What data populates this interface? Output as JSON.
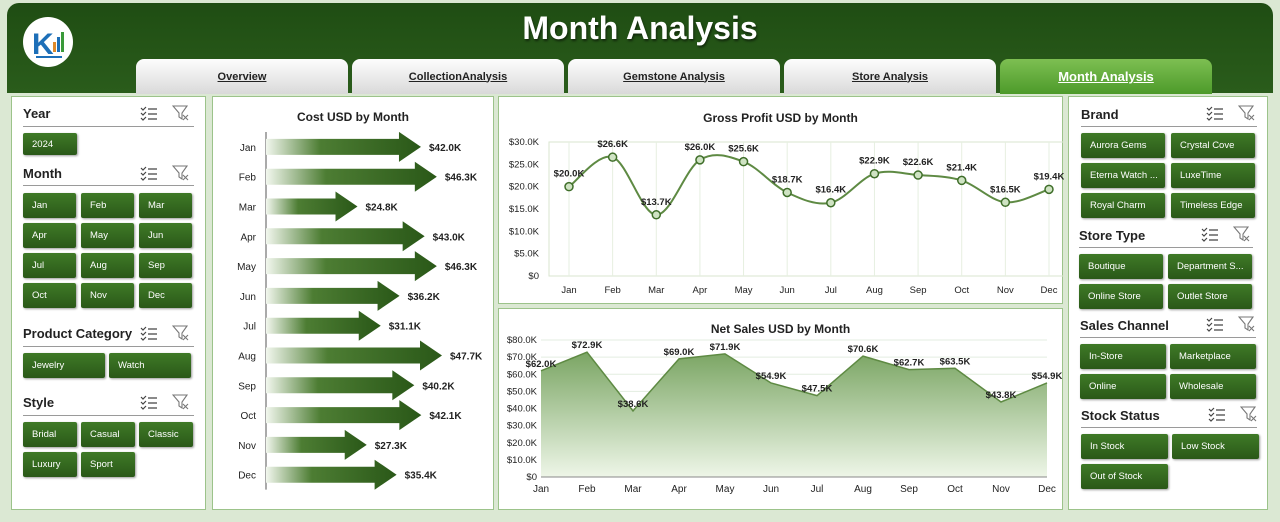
{
  "header": {
    "title": "Month Analysis"
  },
  "tabs": [
    {
      "label": "Overview",
      "active": false
    },
    {
      "label": "CollectionAnalysis",
      "active": false
    },
    {
      "label": "Gemstone Analysis",
      "active": false
    },
    {
      "label": "Store Analysis",
      "active": false
    },
    {
      "label": "Month Analysis",
      "active": true
    }
  ],
  "left_filters": {
    "year": {
      "title": "Year",
      "options": [
        "2024"
      ]
    },
    "month": {
      "title": "Month",
      "options": [
        "Jan",
        "Feb",
        "Mar",
        "Apr",
        "May",
        "Jun",
        "Jul",
        "Aug",
        "Sep",
        "Oct",
        "Nov",
        "Dec"
      ]
    },
    "product_category": {
      "title": "Product Category",
      "options": [
        "Jewelry",
        "Watch"
      ]
    },
    "style": {
      "title": "Style",
      "options": [
        "Bridal",
        "Casual",
        "Classic",
        "Luxury",
        "Sport"
      ]
    }
  },
  "right_filters": {
    "brand": {
      "title": "Brand",
      "options": [
        "Aurora Gems",
        "Crystal Cove",
        "Eterna Watch ...",
        "LuxeTime",
        "Royal Charm",
        "Timeless Edge"
      ]
    },
    "store_type": {
      "title": "Store Type",
      "options": [
        "Boutique",
        "Department S...",
        "Online Store",
        "Outlet Store"
      ]
    },
    "sales_channel": {
      "title": "Sales Channel",
      "options": [
        "In-Store",
        "Marketplace",
        "Online",
        "Wholesale"
      ]
    },
    "stock_status": {
      "title": "Stock Status",
      "options": [
        "In Stock",
        "Low Stock",
        "Out of Stock"
      ]
    }
  },
  "colors": {
    "dark_green": "#2a5818",
    "accent": "#4d9a2a",
    "line": "#6b8f4e"
  },
  "chart_data": [
    {
      "type": "bar",
      "title": "Cost USD by Month",
      "categories": [
        "Jan",
        "Feb",
        "Mar",
        "Apr",
        "May",
        "Jun",
        "Jul",
        "Aug",
        "Sep",
        "Oct",
        "Nov",
        "Dec"
      ],
      "values": [
        42.0,
        46.3,
        24.8,
        43.0,
        46.3,
        36.2,
        31.1,
        47.7,
        40.2,
        42.1,
        27.3,
        35.4
      ],
      "labels": [
        "$42.0K",
        "$46.3K",
        "$24.8K",
        "$43.0K",
        "$46.3K",
        "$36.2K",
        "$31.1K",
        "$47.7K",
        "$40.2K",
        "$42.1K",
        "$27.3K",
        "$35.4K"
      ],
      "orientation": "horizontal"
    },
    {
      "type": "line",
      "title": "Gross Profit USD by Month",
      "categories": [
        "Jan",
        "Feb",
        "Mar",
        "Apr",
        "May",
        "Jun",
        "Jul",
        "Aug",
        "Sep",
        "Oct",
        "Nov",
        "Dec"
      ],
      "values": [
        20.0,
        26.6,
        13.7,
        26.0,
        25.6,
        18.7,
        16.4,
        22.9,
        22.6,
        21.4,
        16.5,
        19.4
      ],
      "labels": [
        "$20.0K",
        "$26.6K",
        "$13.7K",
        "$26.0K",
        "$25.6K",
        "$18.7K",
        "$16.4K",
        "$22.9K",
        "$22.6K",
        "$21.4K",
        "$16.5K",
        "$19.4K"
      ],
      "ylim": [
        0,
        30
      ],
      "yticks": [
        "$0",
        "$5.0K",
        "$10.0K",
        "$15.0K",
        "$20.0K",
        "$25.0K",
        "$30.0K"
      ]
    },
    {
      "type": "area",
      "title": "Net Sales USD by Month",
      "categories": [
        "Jan",
        "Feb",
        "Mar",
        "Apr",
        "May",
        "Jun",
        "Jul",
        "Aug",
        "Sep",
        "Oct",
        "Nov",
        "Dec"
      ],
      "values": [
        62.0,
        72.9,
        38.6,
        69.0,
        71.9,
        54.9,
        47.5,
        70.6,
        62.7,
        63.5,
        43.8,
        54.9
      ],
      "labels": [
        "$62.0K",
        "$72.9K",
        "$38.6K",
        "$69.0K",
        "$71.9K",
        "$54.9K",
        "$47.5K",
        "$70.6K",
        "$62.7K",
        "$63.5K",
        "$43.8K",
        "$54.9K"
      ],
      "ylim": [
        0,
        80
      ],
      "yticks": [
        "$0",
        "$10.0K",
        "$20.0K",
        "$30.0K",
        "$40.0K",
        "$50.0K",
        "$60.0K",
        "$70.0K",
        "$80.0K"
      ]
    }
  ]
}
